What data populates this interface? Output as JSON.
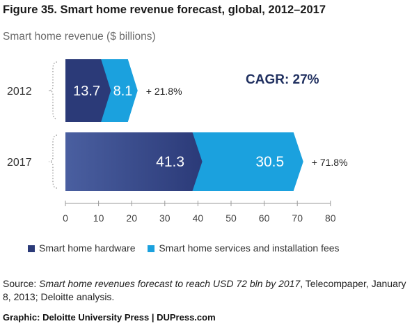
{
  "header": {
    "title": "Figure 35. Smart home revenue forecast, global, 2012–2017",
    "subtitle": "Smart home revenue ($ billions)"
  },
  "colors": {
    "hardware": "#2b3a78",
    "services": "#1ba1de",
    "cagr": "#1f2f5f"
  },
  "chart_data": {
    "type": "bar",
    "stacked": true,
    "orientation": "horizontal",
    "categories": [
      "2012",
      "2017"
    ],
    "series": [
      {
        "name": "Smart home hardware",
        "values": [
          13.7,
          41.3
        ]
      },
      {
        "name": "Smart home services and installation fees",
        "values": [
          8.1,
          30.5
        ]
      }
    ],
    "value_labels": [
      [
        "13.7",
        "8.1"
      ],
      [
        "41.3",
        "30.5"
      ]
    ],
    "share_labels": [
      "+ 21.8%",
      "+ 71.8%"
    ],
    "xlim": [
      0,
      80
    ],
    "xticks": [
      "0",
      "10",
      "20",
      "30",
      "40",
      "50",
      "60",
      "70",
      "80"
    ],
    "annotation": "CAGR: 27%",
    "legend_position": "bottom",
    "grid": false
  },
  "source": {
    "prefix": "Source: ",
    "italic": "Smart home revenues forecast to reach USD 72 bln by 2017",
    "suffix": ", Telecompaper, January 8, 2013; Deloitte analysis."
  },
  "graphic_credit": "Graphic: Deloitte University Press  |  DUPress.com"
}
